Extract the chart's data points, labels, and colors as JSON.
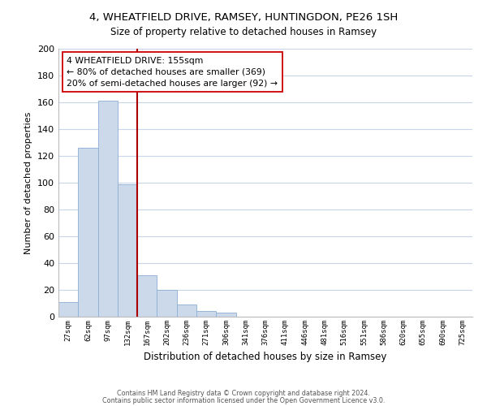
{
  "title": "4, WHEATFIELD DRIVE, RAMSEY, HUNTINGDON, PE26 1SH",
  "subtitle": "Size of property relative to detached houses in Ramsey",
  "xlabel": "Distribution of detached houses by size in Ramsey",
  "ylabel": "Number of detached properties",
  "bar_labels": [
    "27sqm",
    "62sqm",
    "97sqm",
    "132sqm",
    "167sqm",
    "202sqm",
    "236sqm",
    "271sqm",
    "306sqm",
    "341sqm",
    "376sqm",
    "411sqm",
    "446sqm",
    "481sqm",
    "516sqm",
    "551sqm",
    "586sqm",
    "620sqm",
    "655sqm",
    "690sqm",
    "725sqm"
  ],
  "bar_values": [
    11,
    126,
    161,
    99,
    31,
    20,
    9,
    4,
    3,
    0,
    0,
    0,
    0,
    0,
    0,
    0,
    0,
    0,
    0,
    0,
    0
  ],
  "bar_color": "#ccd9ea",
  "bar_edge_color": "#8bafd4",
  "vline_x": 3.5,
  "vline_color": "#aa0000",
  "vline_linewidth": 1.5,
  "annotation_title": "4 WHEATFIELD DRIVE: 155sqm",
  "annotation_line1": "← 80% of detached houses are smaller (369)",
  "annotation_line2": "20% of semi-detached houses are larger (92) →",
  "ylim": [
    0,
    200
  ],
  "yticks": [
    0,
    20,
    40,
    60,
    80,
    100,
    120,
    140,
    160,
    180,
    200
  ],
  "footer1": "Contains HM Land Registry data © Crown copyright and database right 2024.",
  "footer2": "Contains public sector information licensed under the Open Government Licence v3.0.",
  "background_color": "#ffffff",
  "grid_color": "#c8d4e8"
}
